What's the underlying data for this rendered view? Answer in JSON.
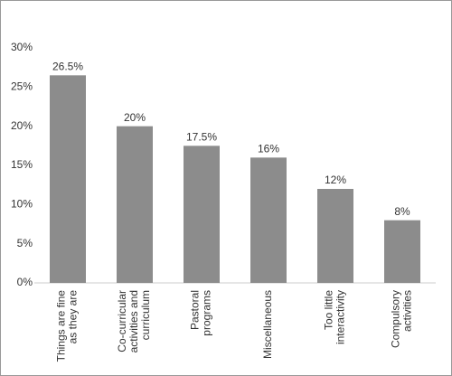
{
  "chart_data": {
    "type": "bar",
    "categories": [
      "Things are fine\nas they are",
      "Co-curricular\nactivities and\ncurriculum",
      "Pastoral\nprograms",
      "Miscellaneous",
      "Too little\ninteractivity",
      "Compulsory\nactivities"
    ],
    "values": [
      26.5,
      20,
      17.5,
      16,
      12,
      8
    ],
    "value_labels": [
      "26.5%",
      "20%",
      "17.5%",
      "16%",
      "12%",
      "8%"
    ],
    "color": "#8c8c8c",
    "ylim": [
      0,
      30
    ],
    "yticks": [
      {
        "value": 0,
        "label": "0%"
      },
      {
        "value": 5,
        "label": "5%"
      },
      {
        "value": 10,
        "label": "10%"
      },
      {
        "value": 15,
        "label": "15%"
      },
      {
        "value": 20,
        "label": "20%"
      },
      {
        "value": 25,
        "label": "25%"
      },
      {
        "value": 30,
        "label": "30%"
      }
    ],
    "grid": false
  }
}
